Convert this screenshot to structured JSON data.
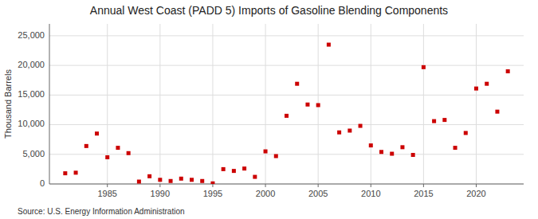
{
  "chart_data": {
    "type": "scatter",
    "title": "Annual West Coast (PADD 5) Imports of Gasoline Blending Components",
    "ylabel": "Thousand Barrels",
    "annotations": [
      "Source: U.S. Energy Information Administration"
    ],
    "color": "#cc0000",
    "marker": "square",
    "grid": true,
    "x": [
      1981,
      1982,
      1983,
      1984,
      1985,
      1986,
      1987,
      1988,
      1989,
      1990,
      1991,
      1992,
      1993,
      1994,
      1995,
      1996,
      1997,
      1998,
      1999,
      2000,
      2001,
      2002,
      2003,
      2004,
      2005,
      2006,
      2007,
      2008,
      2009,
      2010,
      2011,
      2012,
      2013,
      2014,
      2015,
      2016,
      2017,
      2018,
      2019,
      2020,
      2021,
      2022,
      2023
    ],
    "values": [
      1800,
      1900,
      6400,
      8500,
      4500,
      6100,
      5200,
      400,
      1300,
      700,
      500,
      900,
      700,
      500,
      100,
      2500,
      2200,
      2600,
      1200,
      5500,
      4700,
      11500,
      16900,
      13400,
      13300,
      23500,
      8700,
      9000,
      9800,
      6500,
      5400,
      5100,
      6200,
      4900,
      19700,
      10600,
      10800,
      6100,
      8600,
      16100,
      16900,
      12200,
      19000
    ],
    "xlim": [
      1979.5,
      2024.5
    ],
    "xticks": [
      1985,
      1990,
      1995,
      2000,
      2005,
      2010,
      2015,
      2020
    ],
    "ylim": [
      0,
      27000
    ],
    "yticks": [
      0,
      {
        "value": 5000,
        "label": "5,000"
      },
      {
        "value": 10000,
        "label": "10,000"
      },
      {
        "value": 15000,
        "label": "15,000"
      },
      {
        "value": 20000,
        "label": "20,000"
      },
      {
        "value": 25000,
        "label": "25,000"
      }
    ]
  }
}
